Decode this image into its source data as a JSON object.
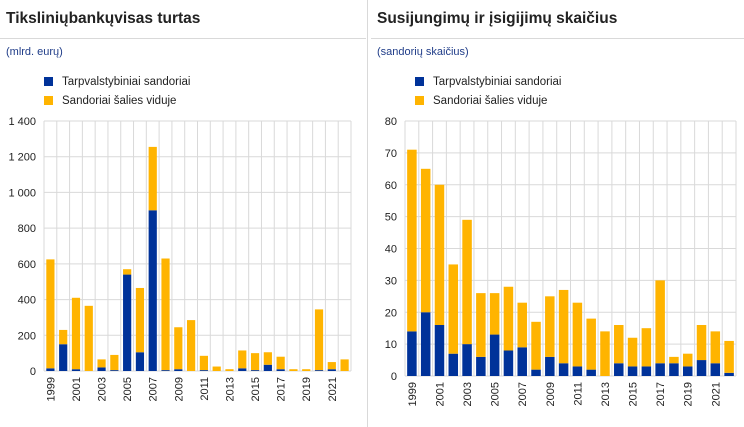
{
  "colors": {
    "cross_border": "#003299",
    "domestic": "#ffb400",
    "grid": "#d9d9d9"
  },
  "charts": [
    {
      "title": "Tiksliniųbankųvisas turtas",
      "unit": "(mlrd. eurų)",
      "legend": [
        "Tarpvalstybiniai sandoriai",
        "Sandoriai šalies viduje"
      ]
    },
    {
      "title": "Susijungimų ir įsigijimų skaičius",
      "unit": "(sandorių skaičius)",
      "legend": [
        "Tarpvalstybiniai sandoriai",
        "Sandoriai šalies viduje"
      ]
    }
  ],
  "chart_data": [
    {
      "type": "bar",
      "stacked": true,
      "title": "Tiksliniųbankųvisas turtas",
      "ylabel": "(mlrd. eurų)",
      "ylim": [
        0,
        1400
      ],
      "yticks": [
        0,
        200,
        400,
        600,
        800,
        1000,
        1200,
        1400
      ],
      "ytick_labels": [
        "0",
        "200",
        "400",
        "600",
        "800",
        "1 000",
        "1 200",
        "1 400"
      ],
      "categories": [
        "1999",
        "2000",
        "2001",
        "2002",
        "2003",
        "2004",
        "2005",
        "2006",
        "2007",
        "2008",
        "2009",
        "2010",
        "2011",
        "2012",
        "2013",
        "2014",
        "2015",
        "2016",
        "2017",
        "2018",
        "2019",
        "2020",
        "2021",
        "2022"
      ],
      "xtick_labels": [
        "1999",
        "2001",
        "2003",
        "2005",
        "2007",
        "2009",
        "2011",
        "2013",
        "2015",
        "2017",
        "2019",
        "2021"
      ],
      "grid": true,
      "legend_position": "top-left",
      "series": [
        {
          "name": "Tarpvalstybiniai sandoriai",
          "values": [
            15,
            150,
            10,
            0,
            20,
            5,
            540,
            105,
            900,
            5,
            10,
            0,
            5,
            0,
            0,
            15,
            5,
            35,
            10,
            0,
            0,
            5,
            10,
            0
          ]
        },
        {
          "name": "Sandoriai šalies viduje",
          "values": [
            610,
            80,
            400,
            365,
            45,
            85,
            30,
            360,
            355,
            625,
            235,
            285,
            80,
            25,
            10,
            100,
            95,
            70,
            70,
            10,
            10,
            340,
            40,
            65
          ]
        }
      ]
    },
    {
      "type": "bar",
      "stacked": true,
      "title": "Susijungimų ir įsigijimų skaičius",
      "ylabel": "(sandorių skaičius)",
      "ylim": [
        0,
        80
      ],
      "yticks": [
        0,
        10,
        20,
        30,
        40,
        50,
        60,
        70,
        80
      ],
      "ytick_labels": [
        "0",
        "10",
        "20",
        "30",
        "40",
        "50",
        "60",
        "70",
        "80"
      ],
      "categories": [
        "1999",
        "2000",
        "2001",
        "2002",
        "2003",
        "2004",
        "2005",
        "2006",
        "2007",
        "2008",
        "2009",
        "2010",
        "2011",
        "2012",
        "2013",
        "2014",
        "2015",
        "2016",
        "2017",
        "2018",
        "2019",
        "2020",
        "2021",
        "2022"
      ],
      "xtick_labels": [
        "1999",
        "2001",
        "2003",
        "2005",
        "2007",
        "2009",
        "2011",
        "2013",
        "2015",
        "2017",
        "2019",
        "2021"
      ],
      "grid": true,
      "legend_position": "top-left",
      "series": [
        {
          "name": "Tarpvalstybiniai sandoriai",
          "values": [
            14,
            20,
            16,
            7,
            10,
            6,
            13,
            8,
            9,
            2,
            6,
            4,
            3,
            2,
            0,
            4,
            3,
            3,
            4,
            4,
            3,
            5,
            4,
            1
          ]
        },
        {
          "name": "Sandoriai šalies viduje",
          "values": [
            57,
            45,
            44,
            28,
            39,
            20,
            13,
            20,
            14,
            15,
            19,
            23,
            20,
            16,
            14,
            12,
            9,
            12,
            26,
            2,
            4,
            11,
            10,
            10
          ]
        }
      ]
    }
  ]
}
